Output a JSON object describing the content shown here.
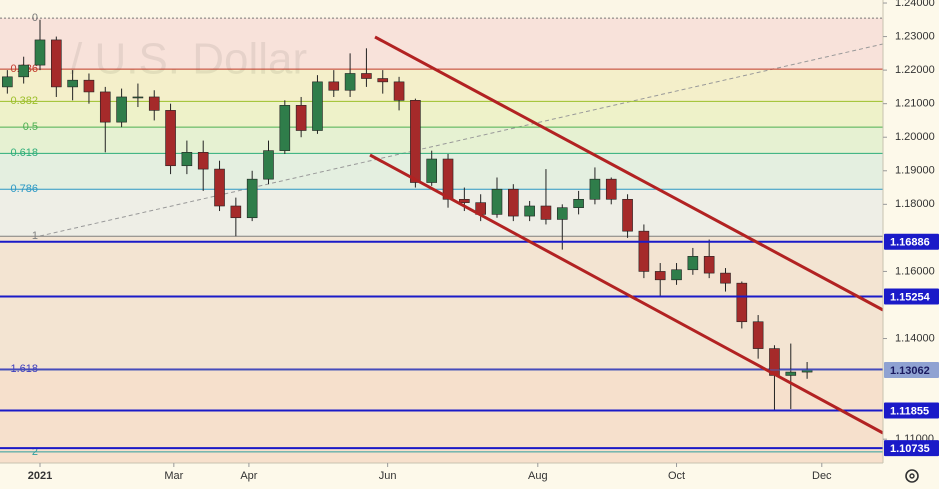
{
  "chart_data": {
    "type": "candlestick",
    "watermark": "/ U.S. Dollar",
    "x": [
      -2,
      -1,
      0,
      1,
      2,
      3,
      4,
      5,
      6,
      7,
      8,
      9,
      10,
      11,
      12,
      13,
      14,
      15,
      16,
      17,
      18,
      19,
      20,
      21,
      22,
      23,
      24,
      25,
      26,
      27,
      28,
      29,
      30,
      31,
      32,
      33,
      34,
      35,
      36,
      37,
      38,
      39,
      40,
      41,
      42,
      43,
      44,
      45,
      46,
      47
    ],
    "series": [
      {
        "up_color": "#2f7d4a",
        "down_color": "#a52a2a",
        "open": [
          1.215,
          1.218,
          1.2215,
          1.229,
          1.215,
          1.217,
          1.2135,
          1.2045,
          1.212,
          1.212,
          1.208,
          1.1915,
          1.1955,
          1.1905,
          1.1795,
          1.176,
          1.1875,
          1.196,
          1.2095,
          1.202,
          1.2165,
          1.214,
          1.219,
          1.2175,
          1.2165,
          1.211,
          1.1865,
          1.1935,
          1.1815,
          1.1805,
          1.177,
          1.1845,
          1.1765,
          1.1795,
          1.1755,
          1.179,
          1.1815,
          1.1875,
          1.1815,
          1.172,
          1.16,
          1.1575,
          1.1605,
          1.1645,
          1.1595,
          1.1565,
          1.145,
          1.137,
          1.129,
          1.13
        ],
        "high": [
          1.22,
          1.224,
          1.235,
          1.23,
          1.22,
          1.219,
          1.215,
          1.2145,
          1.216,
          1.214,
          1.21,
          1.199,
          1.199,
          1.193,
          1.182,
          1.19,
          1.199,
          1.211,
          1.212,
          1.2185,
          1.22,
          1.225,
          1.2265,
          1.22,
          1.218,
          1.2115,
          1.196,
          1.195,
          1.185,
          1.183,
          1.188,
          1.186,
          1.181,
          1.1905,
          1.18,
          1.184,
          1.191,
          1.188,
          1.183,
          1.174,
          1.1625,
          1.1625,
          1.167,
          1.1695,
          1.161,
          1.157,
          1.147,
          1.138,
          1.1385,
          1.133
        ],
        "low": [
          1.213,
          1.216,
          1.22,
          1.212,
          1.211,
          1.21,
          1.1955,
          1.203,
          1.209,
          1.205,
          1.189,
          1.189,
          1.184,
          1.178,
          1.1705,
          1.175,
          1.186,
          1.195,
          1.2,
          1.201,
          1.212,
          1.212,
          1.215,
          1.213,
          1.208,
          1.185,
          1.1855,
          1.179,
          1.178,
          1.175,
          1.176,
          1.175,
          1.175,
          1.174,
          1.1665,
          1.177,
          1.18,
          1.18,
          1.17,
          1.158,
          1.1525,
          1.156,
          1.159,
          1.158,
          1.154,
          1.143,
          1.134,
          1.1186,
          1.119,
          1.128
        ],
        "close": [
          1.218,
          1.2215,
          1.229,
          1.215,
          1.217,
          1.2135,
          1.2045,
          1.212,
          1.212,
          1.208,
          1.1915,
          1.1955,
          1.1905,
          1.1795,
          1.176,
          1.1875,
          1.196,
          1.2095,
          1.202,
          1.2165,
          1.214,
          1.219,
          1.2175,
          1.2165,
          1.211,
          1.1865,
          1.1935,
          1.1815,
          1.1805,
          1.177,
          1.1845,
          1.1765,
          1.1795,
          1.1755,
          1.179,
          1.1815,
          1.1875,
          1.1815,
          1.172,
          1.16,
          1.1575,
          1.1605,
          1.1645,
          1.1595,
          1.1565,
          1.145,
          1.137,
          1.129,
          1.13,
          1.1306
        ]
      }
    ],
    "xlim": [
      -2.45,
      51.65
    ],
    "xticks": [
      {
        "value": 0,
        "label": "2021"
      },
      {
        "value": 8.2,
        "label": "Mar"
      },
      {
        "value": 12.8,
        "label": "Apr"
      },
      {
        "value": 21.3,
        "label": "Jun"
      },
      {
        "value": 30.5,
        "label": "Aug"
      },
      {
        "value": 39,
        "label": "Oct"
      },
      {
        "value": 47.9,
        "label": "Dec"
      }
    ],
    "ylim": [
      1.1029,
      1.2409
    ],
    "yticks": [
      {
        "value": 1.24,
        "label": "1.24000"
      },
      {
        "value": 1.23,
        "label": "1.23000"
      },
      {
        "value": 1.22,
        "label": "1.22000"
      },
      {
        "value": 1.21,
        "label": "1.21000"
      },
      {
        "value": 1.2,
        "label": "1.20000"
      },
      {
        "value": 1.19,
        "label": "1.19000"
      },
      {
        "value": 1.18,
        "label": "1.18000"
      },
      {
        "value": 1.16,
        "label": "1.16000"
      },
      {
        "value": 1.14,
        "label": "1.14000"
      },
      {
        "value": 1.11,
        "label": "1.11000"
      }
    ],
    "fib_levels": [
      {
        "level": 0,
        "price": 1.2355,
        "color": "#787878",
        "fill": "#f8e2da"
      },
      {
        "level": 0.236,
        "price": 1.2203,
        "color": "#c0392b",
        "fill": "#f4efca"
      },
      {
        "level": 0.382,
        "price": 1.2107,
        "color": "#9cbf2a",
        "fill": "#eef2c9"
      },
      {
        "level": 0.5,
        "price": 1.203,
        "color": "#4caf50",
        "fill": "#e6f1d2"
      },
      {
        "level": 0.618,
        "price": 1.1952,
        "color": "#2eae7a",
        "fill": "#e4efe0"
      },
      {
        "level": 0.786,
        "price": 1.1845,
        "color": "#2a98c4",
        "fill": "#eeeee6"
      },
      {
        "level": 1,
        "price": 1.1705,
        "color": "#808080",
        "fill": "#f3e4d2"
      },
      {
        "level": 1.618,
        "price": 1.1309,
        "color": "#3d3dbd",
        "fill": "#f6e0cc"
      },
      {
        "level": 2,
        "price": 1.1062,
        "color": "#2e9e9e",
        "fill": "#f7e0cc"
      }
    ],
    "price_lines": [
      {
        "value": 1.16886,
        "color": "#1a1ac8",
        "text_color": "#ffffff"
      },
      {
        "value": 1.15254,
        "color": "#1a1ac8",
        "text_color": "#ffffff"
      },
      {
        "value": 1.13062,
        "color": "#8fa2d2",
        "text_color": "#1a1a60"
      },
      {
        "value": 1.11855,
        "color": "#1a1ac8",
        "text_color": "#ffffff"
      },
      {
        "value": 1.10735,
        "color": "#1a1ac8",
        "text_color": "#ffffff"
      }
    ]
  }
}
